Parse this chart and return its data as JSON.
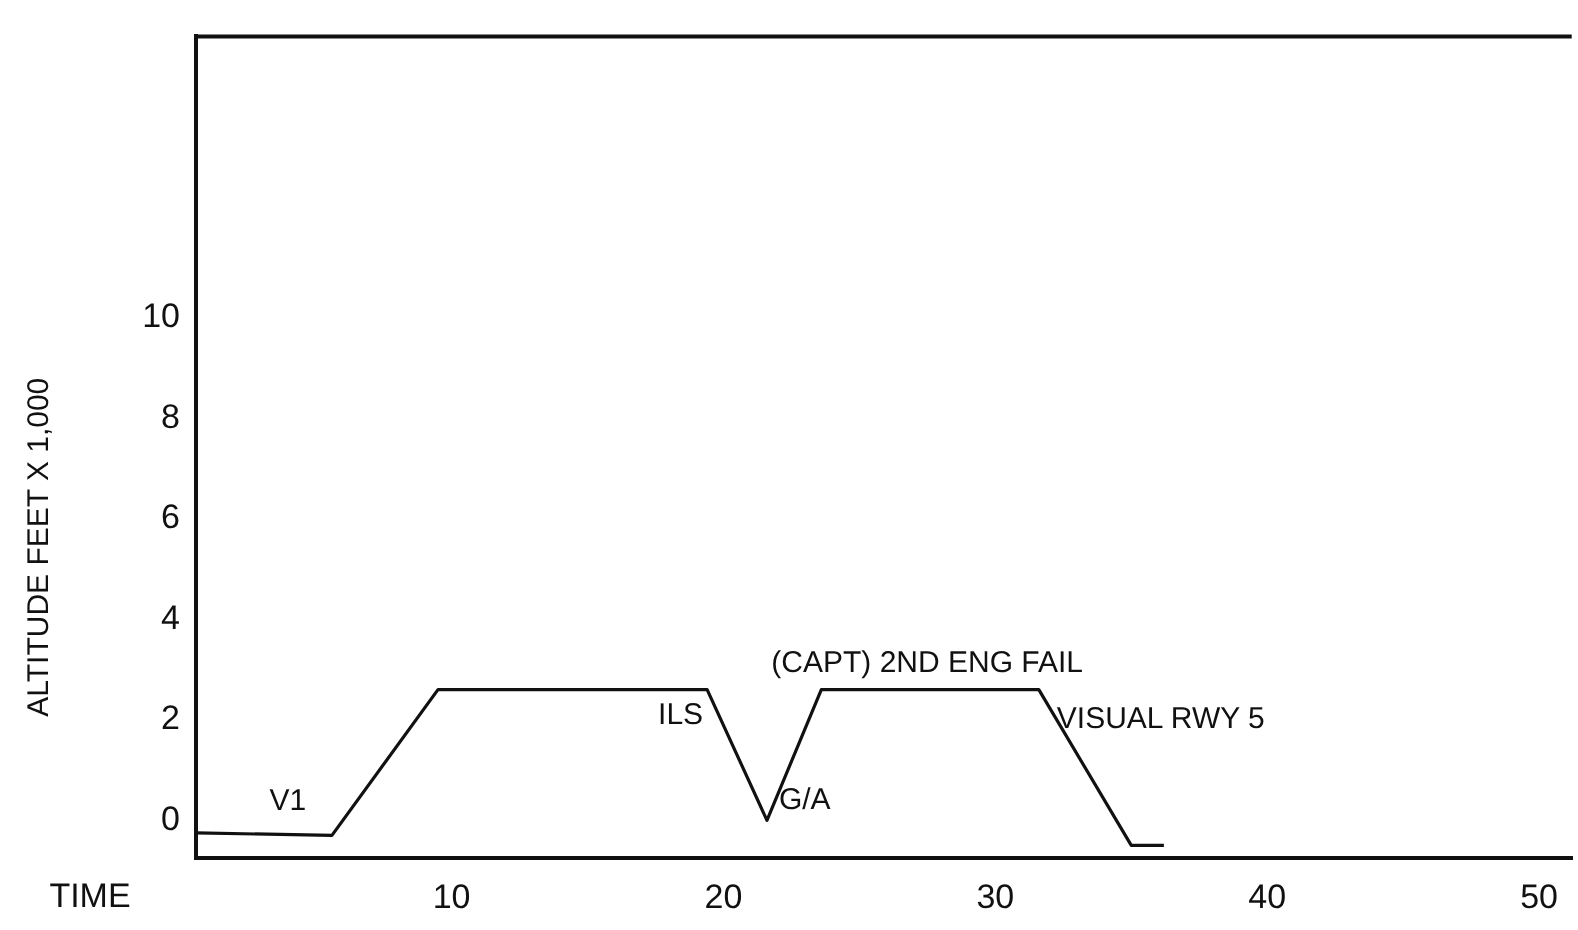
{
  "chart_data": {
    "type": "line",
    "xlabel": "TIME",
    "ylabel": "ALTITUDE FEET X 1,000",
    "x": [
      0.6,
      5.6,
      9.5,
      19.4,
      21.6,
      23.6,
      31.6,
      35.0,
      36.2
    ],
    "series": [
      {
        "color": "#111111",
        "values": [
          -0.25,
          -0.3,
          2.6,
          2.6,
          0,
          2.6,
          2.6,
          -0.5,
          -0.5
        ]
      }
    ],
    "xlim": [
      0.6,
      51.2
    ],
    "xticks": [
      10,
      20,
      30,
      40,
      50
    ],
    "ylim": [
      -0.75,
      15.6
    ],
    "yticks": [
      0,
      2,
      4,
      6,
      8,
      10
    ],
    "grid": false,
    "legend": false,
    "marker": "none",
    "line_style": "solid",
    "annotations": [
      {
        "text": "V1",
        "x": 5.6,
        "y": -0.3
      },
      {
        "text": "ILS",
        "x": 19.4,
        "y": 2.6
      },
      {
        "text": "G/A",
        "x": 21.6,
        "y": 0
      },
      {
        "text": "(CAPT) 2ND ENG FAIL",
        "x": 23.6,
        "y": 2.6
      },
      {
        "text": "VISUAL RWY 5",
        "x": 31.6,
        "y": 2.6
      }
    ]
  }
}
